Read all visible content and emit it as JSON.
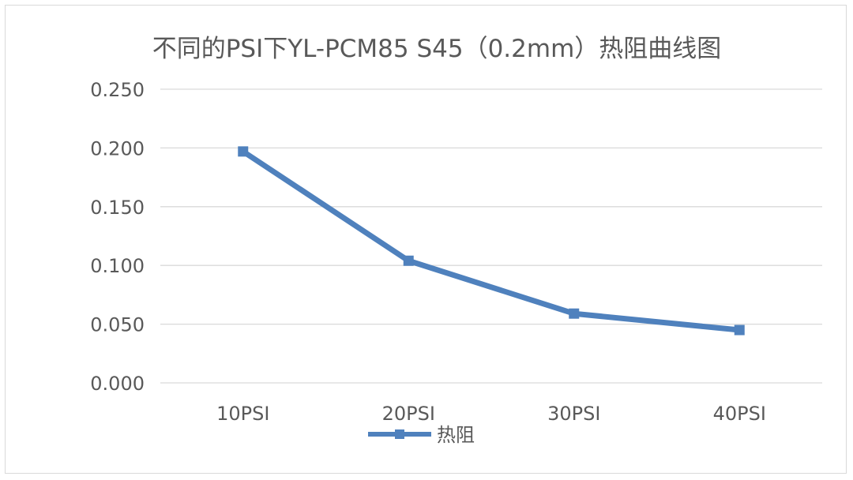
{
  "chart_data": {
    "type": "line",
    "title": "不同的PSI下YL-PCM85 S45（0.2mm）热阻曲线图",
    "xlabel": "",
    "ylabel": "",
    "categories": [
      "10PSI",
      "20PSI",
      "30PSI",
      "40PSI"
    ],
    "series": [
      {
        "name": "热阻",
        "values": [
          0.197,
          0.104,
          0.059,
          0.045
        ],
        "color": "#4f81bd",
        "marker": "square"
      }
    ],
    "ylim": [
      0,
      0.25
    ],
    "yticks": [
      "0.000",
      "0.050",
      "0.100",
      "0.150",
      "0.200",
      "0.250"
    ],
    "grid": true,
    "legend_position": "bottom"
  }
}
